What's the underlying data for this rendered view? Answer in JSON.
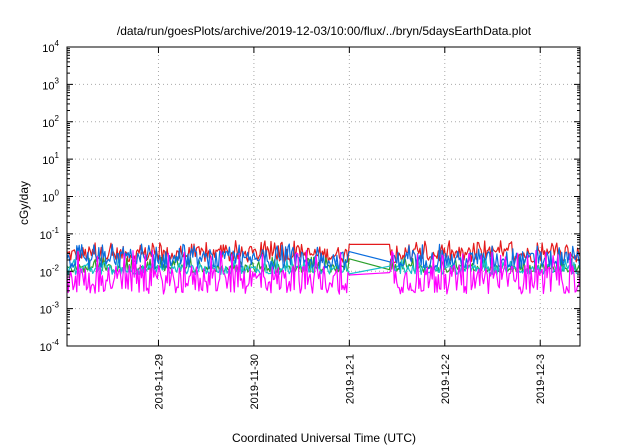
{
  "chart_data": {
    "type": "line",
    "title": "/data/run/goesPlots/archive/2019-12-03/10:00/flux/../bryn/5daysEarthData.plot",
    "xlabel": "Coordinated Universal Time (UTC)",
    "ylabel": "cGy/day",
    "y_scale": "log",
    "ylim": [
      0.0001,
      10000
    ],
    "y_ticks": [
      {
        "value": 0.0001,
        "base": "10",
        "exp": "-4"
      },
      {
        "value": 0.001,
        "base": "10",
        "exp": "-3"
      },
      {
        "value": 0.01,
        "base": "10",
        "exp": "-2"
      },
      {
        "value": 0.1,
        "base": "10",
        "exp": "-1"
      },
      {
        "value": 1,
        "base": "10",
        "exp": "0"
      },
      {
        "value": 10,
        "base": "10",
        "exp": "1"
      },
      {
        "value": 100,
        "base": "10",
        "exp": "2"
      },
      {
        "value": 1000,
        "base": "10",
        "exp": "3"
      },
      {
        "value": 10000,
        "base": "10",
        "exp": "4"
      }
    ],
    "x_type": "date",
    "xlim": [
      "2019-11-28 01:00",
      "2019-12-03 10:00"
    ],
    "x_ticks": [
      "2019-11-29",
      "2019-11-30",
      "2019-12-1",
      "2019-12-2",
      "2019-12-3"
    ],
    "x_tick_dates": [
      "2019-11-29 00:00",
      "2019-11-30 00:00",
      "2019-12-01 00:00",
      "2019-12-02 00:00",
      "2019-12-03 00:00"
    ],
    "grid": true,
    "data_gap": {
      "start": "2019-12-01 00:00",
      "end": "2019-12-01 10:00"
    },
    "series": [
      {
        "color": "#e41a1c",
        "base": 0.028,
        "spread": 0.5,
        "spikes": 0.055
      },
      {
        "color": "#2ca02c",
        "base": 0.012,
        "spread": 0.25,
        "spikes": 0.02
      },
      {
        "color": "#17becf",
        "base": 0.011,
        "spread": 0.3,
        "spikes": 0.018
      },
      {
        "color": "#0a6dde",
        "base": 0.02,
        "spread": 0.55,
        "spikes": 0.045
      },
      {
        "color": "#ff00ff",
        "base": 0.006,
        "spread": 0.9,
        "spikes": 0.03
      }
    ]
  }
}
